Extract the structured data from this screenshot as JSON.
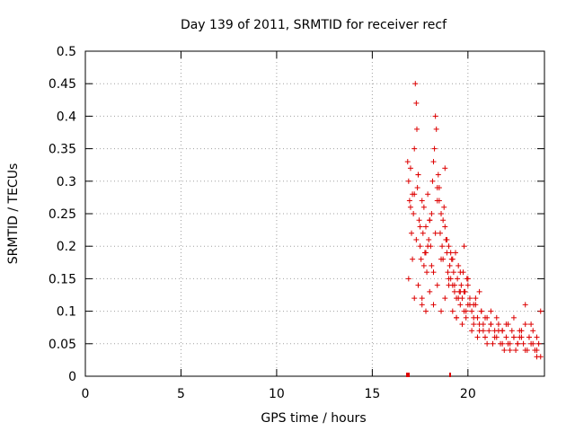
{
  "chart_data": {
    "type": "scatter",
    "title": "Day 139 of 2011, SRMTID for receiver recf",
    "xlabel": "GPS time / hours",
    "ylabel": "SRMTID / TECUs",
    "xlim": [
      0,
      24
    ],
    "ylim": [
      0,
      0.5
    ],
    "x_ticks": [
      0,
      5,
      10,
      15,
      20
    ],
    "x_tick_labels": [
      "0",
      "5",
      "10",
      "15",
      "20"
    ],
    "y_ticks": [
      0,
      0.05,
      0.1,
      0.15,
      0.2,
      0.25,
      0.3,
      0.35,
      0.4,
      0.45,
      0.5
    ],
    "y_tick_labels": [
      "0",
      "0.05",
      "0.1",
      "0.15",
      "0.2",
      "0.25",
      "0.3",
      "0.35",
      "0.4",
      "0.45",
      "0.5"
    ],
    "grid": true,
    "legend": "none",
    "marker": "+",
    "color": "#dd0000",
    "series": [
      {
        "x": [
          16.85,
          16.9,
          16.95,
          17.0,
          17.05,
          17.1,
          17.15,
          17.2,
          17.25,
          17.3,
          17.33,
          17.36,
          17.4,
          17.45,
          17.5,
          17.55,
          17.6,
          17.65,
          17.7,
          17.75,
          17.8,
          17.85,
          17.9,
          17.95,
          18.0,
          18.05,
          18.1,
          18.15,
          18.2,
          18.25,
          18.3,
          18.35,
          18.4,
          18.45,
          18.5,
          18.55,
          18.6,
          18.65,
          18.7,
          18.75,
          18.8,
          18.85,
          18.9,
          18.95,
          19.0,
          19.05,
          19.1,
          19.15,
          19.2,
          19.25,
          19.3,
          19.35,
          19.4,
          19.45,
          19.5,
          19.55,
          19.6,
          19.65,
          19.7,
          19.75,
          19.8,
          19.85,
          19.9,
          19.95,
          20.0,
          20.1,
          20.2,
          20.3,
          20.4,
          20.5,
          20.6,
          20.7,
          20.8,
          20.9,
          21.0,
          21.1,
          21.2,
          21.3,
          21.4,
          21.5,
          21.6,
          21.7,
          21.8,
          21.9,
          22.0,
          22.1,
          22.2,
          22.3,
          22.4,
          22.5,
          22.6,
          22.7,
          22.8,
          22.9,
          23.0,
          23.1,
          23.2,
          23.3,
          23.4,
          23.5,
          23.6,
          23.7,
          23.8,
          16.9,
          17.0,
          17.1,
          17.2,
          17.3,
          17.4,
          17.5,
          17.6,
          17.7,
          17.8,
          17.9,
          18.0,
          18.1,
          18.2,
          18.3,
          18.4,
          18.5,
          18.6,
          18.7,
          18.8,
          18.9,
          19.0,
          19.1,
          19.2,
          19.3,
          19.4,
          19.5,
          19.6,
          19.7,
          19.8,
          19.9,
          20.0,
          20.1,
          20.2,
          20.3,
          20.4,
          20.5,
          20.6,
          20.7,
          20.8,
          20.9,
          21.0,
          21.2,
          21.4,
          21.6,
          21.8,
          22.0,
          22.2,
          22.4,
          22.6,
          22.8,
          23.0,
          23.2,
          23.4,
          23.6,
          23.8,
          17.2,
          17.4,
          17.6,
          17.8,
          18.0,
          18.2,
          18.4,
          18.6,
          18.8,
          19.0,
          19.2,
          19.4,
          19.6,
          19.8,
          20.0,
          20.3,
          20.6,
          20.9,
          21.2,
          21.5,
          21.8,
          22.1,
          22.4,
          22.7,
          23.0,
          23.3,
          23.6
        ],
        "y": [
          0.33,
          0.3,
          0.27,
          0.32,
          0.22,
          0.28,
          0.25,
          0.35,
          0.45,
          0.42,
          0.38,
          0.29,
          0.31,
          0.24,
          0.2,
          0.18,
          0.27,
          0.22,
          0.26,
          0.19,
          0.23,
          0.16,
          0.28,
          0.21,
          0.24,
          0.2,
          0.17,
          0.3,
          0.33,
          0.35,
          0.4,
          0.38,
          0.29,
          0.31,
          0.27,
          0.22,
          0.25,
          0.2,
          0.18,
          0.26,
          0.23,
          0.21,
          0.19,
          0.16,
          0.2,
          0.17,
          0.15,
          0.18,
          0.14,
          0.16,
          0.13,
          0.19,
          0.12,
          0.15,
          0.17,
          0.13,
          0.11,
          0.14,
          0.12,
          0.16,
          0.1,
          0.13,
          0.09,
          0.15,
          0.11,
          0.12,
          0.1,
          0.08,
          0.11,
          0.09,
          0.07,
          0.1,
          0.08,
          0.06,
          0.09,
          0.07,
          0.08,
          0.05,
          0.07,
          0.06,
          0.08,
          0.05,
          0.07,
          0.04,
          0.06,
          0.08,
          0.05,
          0.07,
          0.06,
          0.04,
          0.05,
          0.07,
          0.06,
          0.05,
          0.08,
          0.04,
          0.06,
          0.05,
          0.07,
          0.04,
          0.06,
          0.05,
          0.03,
          0.15,
          0.26,
          0.18,
          0.12,
          0.21,
          0.14,
          0.23,
          0.11,
          0.17,
          0.1,
          0.2,
          0.13,
          0.25,
          0.16,
          0.22,
          0.14,
          0.29,
          0.18,
          0.24,
          0.12,
          0.21,
          0.15,
          0.19,
          0.1,
          0.14,
          0.09,
          0.12,
          0.16,
          0.08,
          0.13,
          0.1,
          0.14,
          0.11,
          0.07,
          0.09,
          0.12,
          0.06,
          0.08,
          0.1,
          0.07,
          0.09,
          0.05,
          0.08,
          0.06,
          0.07,
          0.05,
          0.08,
          0.04,
          0.06,
          0.05,
          0.07,
          0.04,
          0.06,
          0.05,
          0.04,
          0.1,
          0.28,
          0.31,
          0.12,
          0.19,
          0.24,
          0.11,
          0.27,
          0.1,
          0.32,
          0.14,
          0.18,
          0.09,
          0.13,
          0.2,
          0.15,
          0.11,
          0.13,
          0.06,
          0.1,
          0.09,
          0.07,
          0.05,
          0.09,
          0.06,
          0.11,
          0.08,
          0.03
        ]
      }
    ]
  }
}
